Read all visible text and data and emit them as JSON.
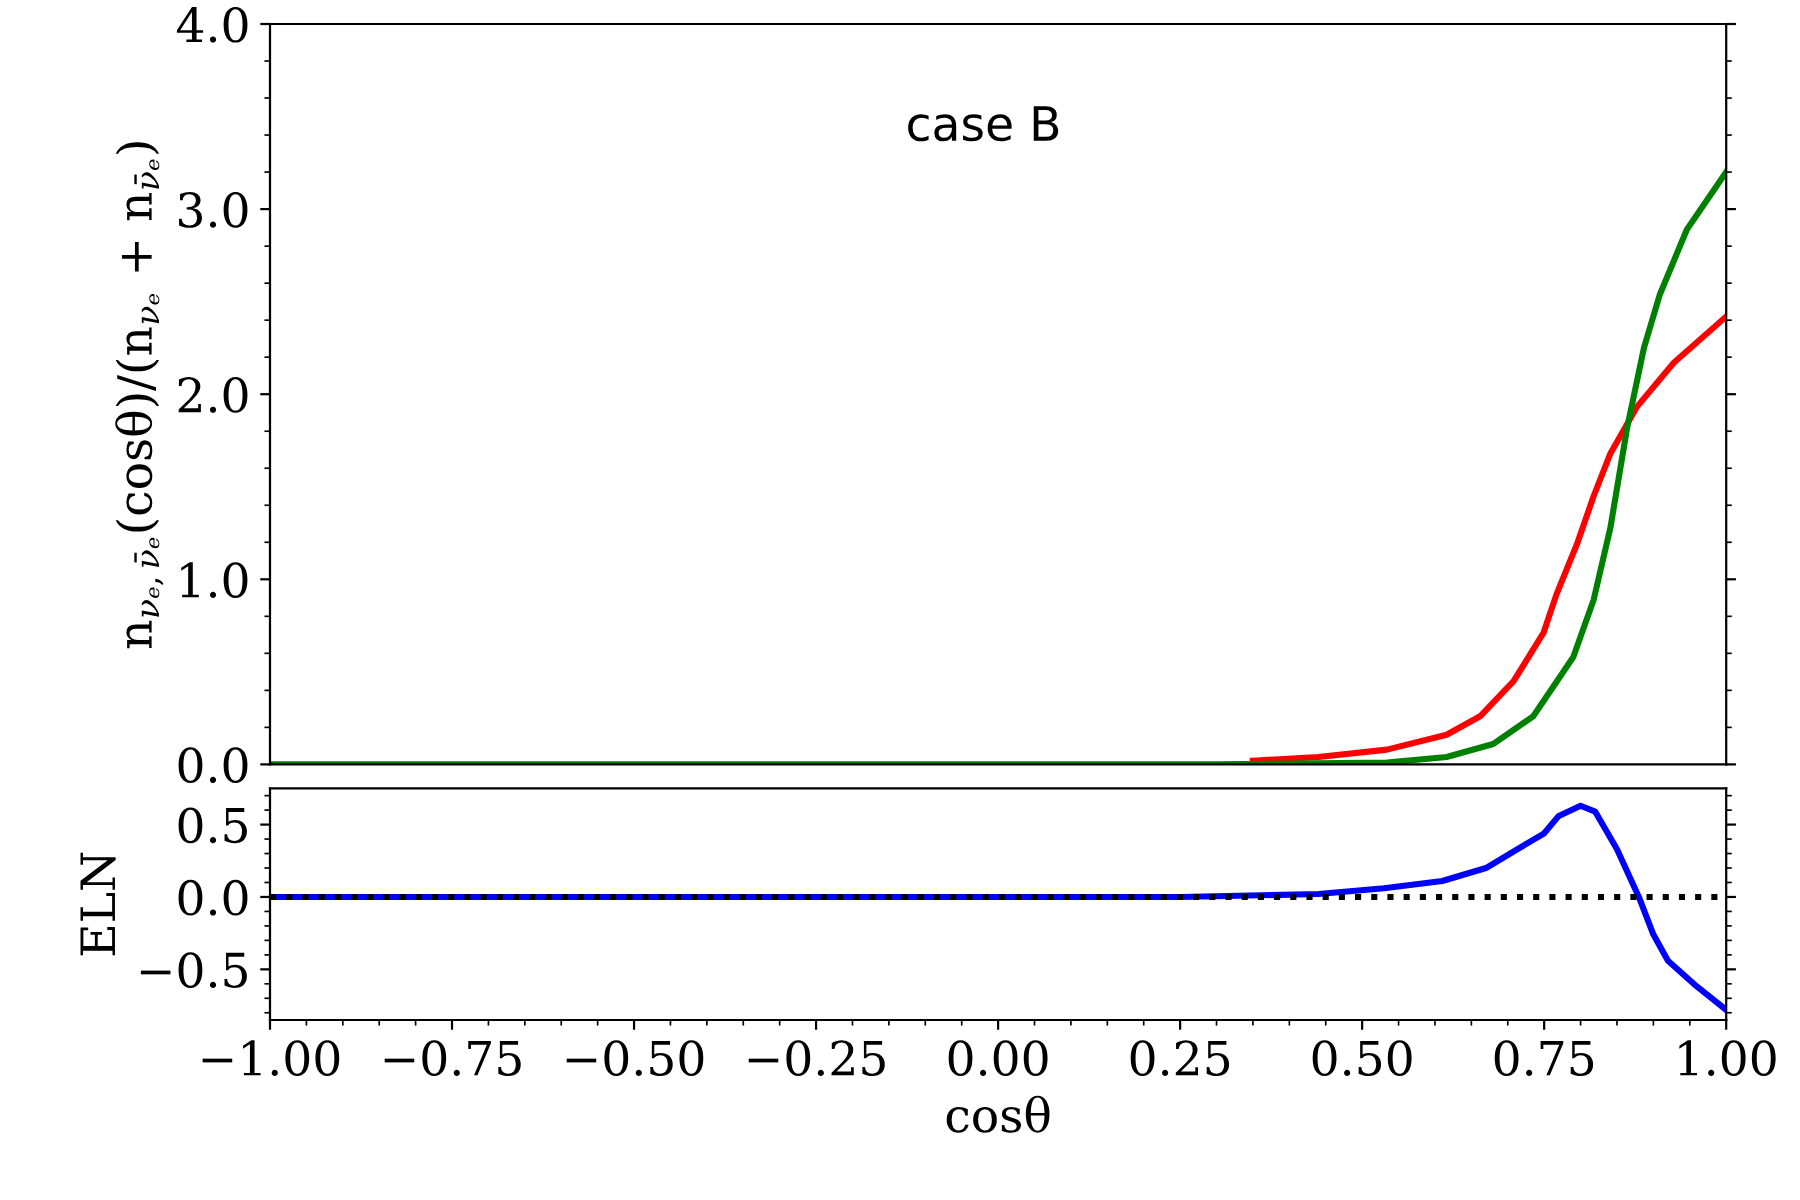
{
  "chart_data": [
    {
      "type": "line",
      "ylabel": "n$_{νₑ,ν̄ₑ}$(cosθ)/(n$_{νₑ}$ + n$_{ν̄ₑ}$)",
      "annotations": [
        "case B"
      ],
      "tick_labels": "y",
      "xlim": [
        -1.0,
        1.0
      ],
      "xticks": [
        {
          "value": -1.0,
          "label": null
        },
        {
          "value": -0.75,
          "label": null
        },
        {
          "value": -0.5,
          "label": null
        },
        {
          "value": -0.25,
          "label": null
        },
        {
          "value": 0.0,
          "label": null
        },
        {
          "value": 0.25,
          "label": null
        },
        {
          "value": 0.5,
          "label": null
        },
        {
          "value": 0.75,
          "label": null
        },
        {
          "value": 1.0,
          "label": null
        }
      ],
      "ylim": [
        0.0,
        4.0
      ],
      "yticks": [
        {
          "value": 0,
          "label": "0.0"
        },
        {
          "value": 1,
          "label": "1.0"
        },
        {
          "value": 2,
          "label": "2.0"
        },
        {
          "value": 3,
          "label": "3.0"
        },
        {
          "value": 4,
          "label": "4.0"
        }
      ],
      "series": [
        {
          "color": "#ff0000",
          "x": [
            0.35,
            0.44,
            0.534,
            0.616,
            0.662,
            0.708,
            0.749,
            0.767,
            0.795,
            0.818,
            0.841,
            0.877,
            0.928,
            1.0
          ],
          "values": [
            0.02,
            0.04,
            0.08,
            0.16,
            0.26,
            0.45,
            0.71,
            0.92,
            1.19,
            1.45,
            1.68,
            1.93,
            2.17,
            2.42
          ]
        },
        {
          "color": "#008000",
          "x": [
            -1.0,
            -0.5,
            0.0,
            0.3,
            0.534,
            0.616,
            0.68,
            0.735,
            0.79,
            0.818,
            0.841,
            0.864,
            0.887,
            0.909,
            0.946,
            1.0
          ],
          "values": [
            0.0,
            0.0,
            0.0,
            0.0,
            0.01,
            0.04,
            0.11,
            0.26,
            0.58,
            0.89,
            1.28,
            1.82,
            2.25,
            2.54,
            2.89,
            3.2
          ]
        }
      ]
    },
    {
      "type": "line",
      "xlabel": "cosθ",
      "ylabel": "ELN",
      "xlim": [
        -1.0,
        1.0
      ],
      "xticks": [
        {
          "value": -1.0,
          "label": "−1.00"
        },
        {
          "value": -0.75,
          "label": "−0.75"
        },
        {
          "value": -0.5,
          "label": "−0.50"
        },
        {
          "value": -0.25,
          "label": "−0.25"
        },
        {
          "value": 0.0,
          "label": "0.00"
        },
        {
          "value": 0.25,
          "label": "0.25"
        },
        {
          "value": 0.5,
          "label": "0.50"
        },
        {
          "value": 0.75,
          "label": "0.75"
        },
        {
          "value": 1.0,
          "label": "1.00"
        }
      ],
      "ylim": [
        -0.85,
        0.75
      ],
      "yticks": [
        {
          "value": -0.5,
          "label": "−0.5"
        },
        {
          "value": 0.0,
          "label": "0.0"
        },
        {
          "value": 0.5,
          "label": "0.5"
        }
      ],
      "ref_lines": [
        {
          "axis": "y",
          "value": 0.0,
          "color": "#000000",
          "line_style": "dotted"
        }
      ],
      "series": [
        {
          "color": "#0000ff",
          "x": [
            -1.0,
            -0.5,
            0.0,
            0.25,
            0.44,
            0.53,
            0.61,
            0.67,
            0.71,
            0.75,
            0.77,
            0.8,
            0.82,
            0.85,
            0.88,
            0.9,
            0.92,
            0.96,
            1.0
          ],
          "values": [
            0.0,
            0.0,
            0.0,
            0.0,
            0.02,
            0.06,
            0.11,
            0.2,
            0.32,
            0.44,
            0.56,
            0.63,
            0.59,
            0.33,
            0.0,
            -0.26,
            -0.44,
            -0.62,
            -0.78
          ]
        }
      ]
    }
  ]
}
